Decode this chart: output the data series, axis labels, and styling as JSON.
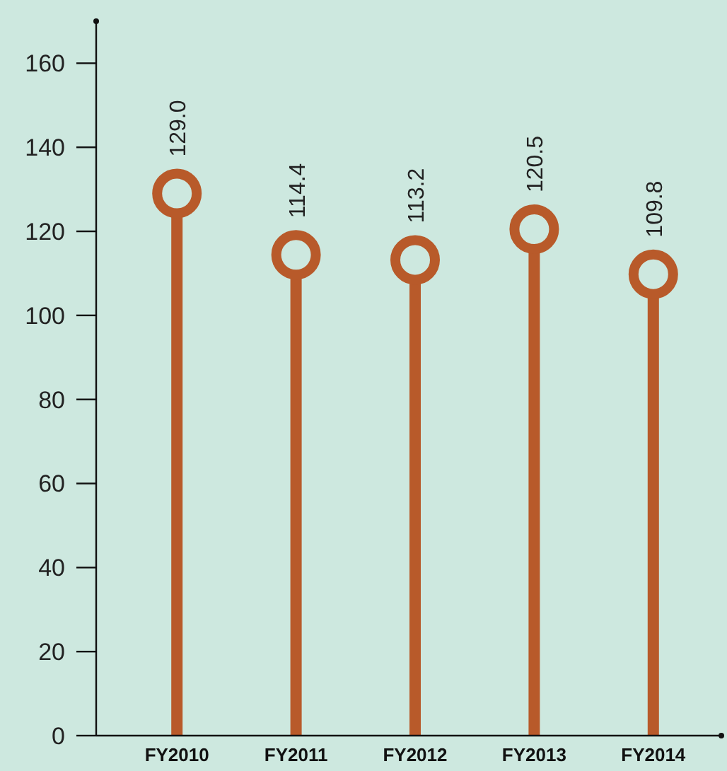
{
  "chart_data": {
    "type": "lollipop",
    "categories": [
      "FY2010",
      "FY2011",
      "FY2012",
      "FY2013",
      "FY2014"
    ],
    "values": [
      129.0,
      114.4,
      113.2,
      120.5,
      109.8
    ],
    "value_labels": [
      "129.0",
      "114.4",
      "113.2",
      "120.5",
      "109.8"
    ],
    "color": "#b85a2a",
    "ylim": [
      0,
      170
    ],
    "yticks": [
      0,
      20,
      40,
      60,
      80,
      100,
      120,
      140,
      160
    ],
    "marker": "circle"
  }
}
